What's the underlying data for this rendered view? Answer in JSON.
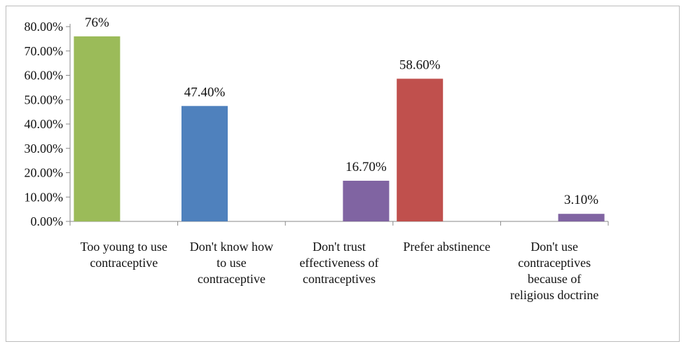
{
  "chart_data": {
    "type": "bar",
    "title": "",
    "xlabel": "",
    "ylabel": "",
    "ylim": [
      0,
      80
    ],
    "yticks": [
      "0.00%",
      "10.00%",
      "20.00%",
      "30.00%",
      "40.00%",
      "50.00%",
      "60.00%",
      "70.00%",
      "80.00%"
    ],
    "grid": false,
    "legend": "none",
    "categories": [
      [
        "Too young to use",
        "contraceptive"
      ],
      [
        "Don't know how",
        "to use",
        "contraceptive"
      ],
      [
        "Don't trust",
        "effectiveness of",
        "contraceptives"
      ],
      [
        "Prefer abstinence"
      ],
      [
        "Don't use",
        "contraceptives",
        "because of",
        "religious doctrine"
      ]
    ],
    "series": [
      {
        "values": [
          76,
          47.4,
          null,
          58.6,
          null
        ],
        "labels": [
          "76%",
          "47.40%",
          "",
          "58.60%",
          ""
        ],
        "colors": [
          "#9bbb59",
          "#4f81bd",
          "",
          "#c0504d",
          ""
        ]
      },
      {
        "values": [
          null,
          null,
          16.7,
          null,
          3.1
        ],
        "labels": [
          "",
          "",
          "16.70%",
          "",
          "3.10%"
        ],
        "colors": [
          "",
          "",
          "#8064a2",
          "",
          "#8064a2"
        ]
      }
    ]
  }
}
